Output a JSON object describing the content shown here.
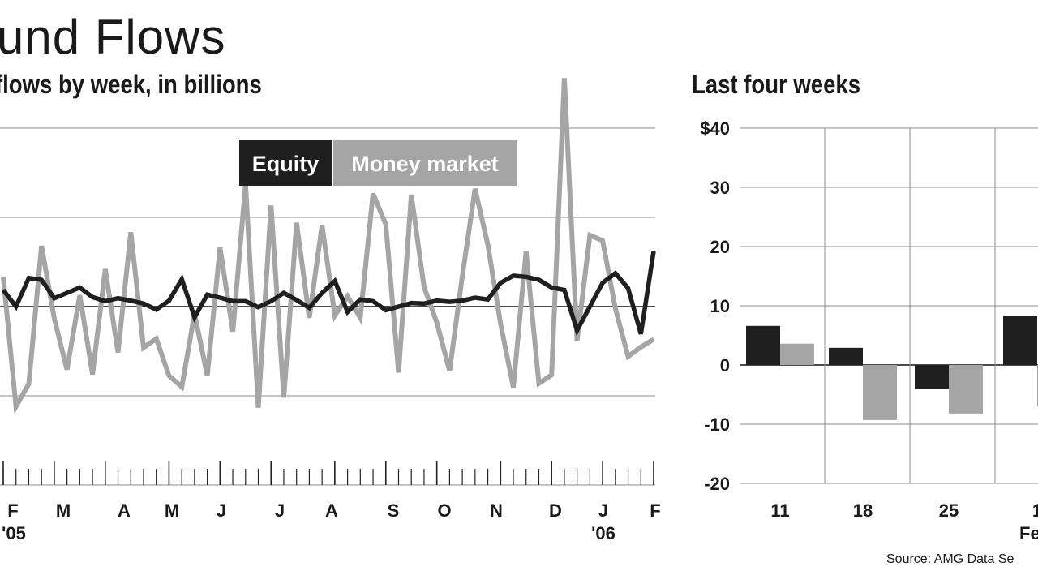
{
  "title": "und Flows",
  "subtitle": "flows by week, in billions",
  "subtitle_right": "Last four weeks",
  "source": "Source: AMG Data Se",
  "colors": {
    "equity": "#1f1f1f",
    "money_market": "#a5a5a5",
    "grid": "#8c8c8c"
  },
  "chart_data": [
    {
      "type": "line",
      "title": "",
      "legend": [
        "Equity",
        "Money market"
      ],
      "legend_placement": "top-center",
      "months": [
        "F",
        "M",
        "A",
        "M",
        "J",
        "J",
        "A",
        "S",
        "O",
        "N",
        "D",
        "J",
        "F"
      ],
      "year_labels": [
        "'05",
        "'06"
      ],
      "grid": true,
      "ylim": [
        -20,
        40
      ],
      "series": [
        {
          "name": "Equity",
          "values": [
            2.8,
            0,
            4.8,
            4.5,
            1.4,
            2.3,
            3.2,
            1.6,
            0.9,
            1.4,
            1,
            0.5,
            -0.5,
            1,
            4.6,
            -1.8,
            2,
            1.5,
            0.9,
            0.9,
            -0.1,
            0.9,
            2.3,
            1.1,
            -0.2,
            2.3,
            4.3,
            -0.9,
            1.2,
            0.9,
            -0.6,
            0,
            0.6,
            0.5,
            1,
            0.8,
            1,
            1.5,
            1.2,
            4,
            5.2,
            5,
            4.5,
            3.2,
            2.8,
            -4,
            0,
            4,
            5.6,
            3.1,
            -4.6,
            9.3
          ]
        },
        {
          "name": "Money market",
          "values": [
            5,
            -16.8,
            -13,
            10.2,
            -2,
            -10.6,
            1.9,
            -11.4,
            6.3,
            -7.7,
            12.5,
            -6.9,
            -5.4,
            -11.6,
            -13.5,
            -1.2,
            -11.6,
            9.9,
            -4.2,
            20.6,
            -17,
            17,
            -15.3,
            14.1,
            -1.9,
            13.7,
            -1.5,
            1.7,
            -1.9,
            19,
            13.8,
            -11.1,
            18.8,
            3.3,
            -2.7,
            -10.8,
            5.1,
            19.8,
            10.4,
            -2.9,
            -13.6,
            9.3,
            -12.9,
            -11.5,
            38.4,
            -5.7,
            12,
            11.1,
            -0.3,
            -8.4,
            -6.8,
            -5.5
          ]
        }
      ]
    },
    {
      "type": "bar",
      "title": "Last four weeks",
      "categories": [
        "11",
        "18",
        "25",
        "1"
      ],
      "axis_labels": [
        "$40",
        "30",
        "20",
        "10",
        "0",
        "-10",
        "-20"
      ],
      "month_label": "Fe",
      "ylim": [
        -20,
        40
      ],
      "grid": true,
      "series": [
        {
          "name": "Equity",
          "values": [
            6.6,
            2.9,
            -4.1,
            8.3
          ]
        },
        {
          "name": "Money market",
          "values": [
            3.6,
            -9.3,
            -8.2,
            -7
          ]
        }
      ]
    }
  ]
}
